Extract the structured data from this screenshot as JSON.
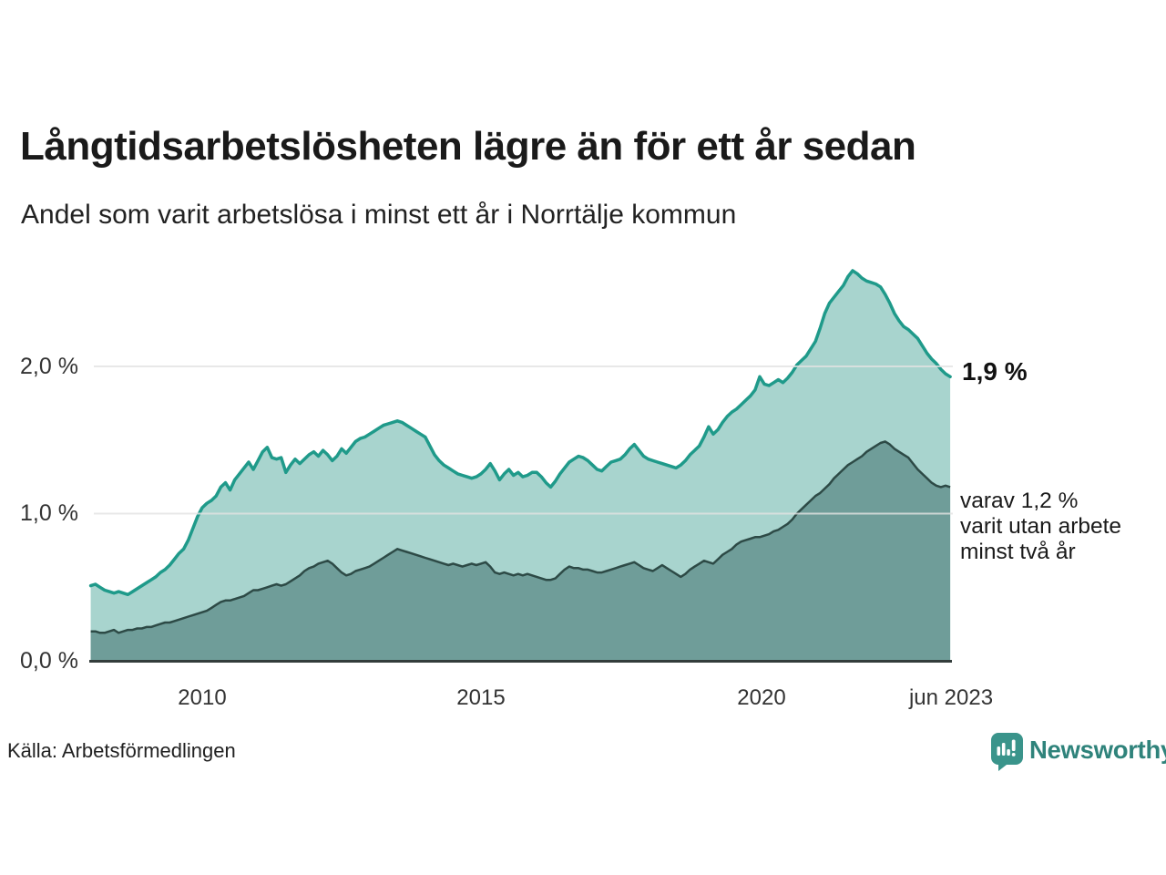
{
  "title": "Långtidsarbetslösheten lägre än för ett år sedan",
  "subtitle": "Andel som varit arbetslösa i minst ett år i Norrtälje kommun",
  "source": "Källa: Arbetsförmedlingen",
  "branding": {
    "wordmark": "Newsworthy"
  },
  "y_axis_ticks": [
    "2,0 %",
    "1,0 %",
    "0,0 %"
  ],
  "x_axis_ticks": [
    "2010",
    "2015",
    "2020",
    "jun 2023"
  ],
  "annotations": {
    "latest_total": "1,9 %",
    "two_year_lines": [
      "varav 1,2 %",
      "varit utan arbete",
      "minst två år"
    ]
  },
  "colors": {
    "line_total": "#1f9a8a",
    "fill_total": "#a8d4ce",
    "line_two_year": "#2d4a46",
    "fill_two_year": "#6f9d99",
    "grid": "#e3e3e3",
    "axis": "#333d3b",
    "brand": "#2f837b",
    "brand_icon": "#3a948b"
  },
  "chart_data": {
    "type": "area",
    "title": "Långtidsarbetslösheten lägre än för ett år sedan",
    "subtitle": "Andel som varit arbetslösa i minst ett år i Norrtälje kommun",
    "x_unit": "month",
    "x_start": "2008-01",
    "x_end": "2023-06",
    "ylim": [
      0,
      2.8
    ],
    "ytick_values_percent": [
      0.0,
      1.0,
      2.0
    ],
    "grid": "horizontal",
    "legend_position": "right-annotations",
    "series": [
      {
        "name": "Andel som varit arbetslösa i minst ett år",
        "end_label": "1,9 %",
        "end_value_percent": 1.9,
        "values": [
          0.51,
          0.52,
          0.5,
          0.48,
          0.47,
          0.46,
          0.47,
          0.46,
          0.45,
          0.47,
          0.49,
          0.51,
          0.53,
          0.55,
          0.57,
          0.6,
          0.62,
          0.65,
          0.69,
          0.73,
          0.76,
          0.82,
          0.9,
          0.98,
          1.04,
          1.07,
          1.09,
          1.12,
          1.18,
          1.21,
          1.16,
          1.23,
          1.27,
          1.31,
          1.35,
          1.3,
          1.36,
          1.42,
          1.45,
          1.38,
          1.37,
          1.38,
          1.28,
          1.33,
          1.37,
          1.34,
          1.37,
          1.4,
          1.42,
          1.39,
          1.43,
          1.4,
          1.36,
          1.39,
          1.44,
          1.41,
          1.45,
          1.49,
          1.51,
          1.52,
          1.54,
          1.56,
          1.58,
          1.6,
          1.61,
          1.62,
          1.63,
          1.62,
          1.6,
          1.58,
          1.56,
          1.54,
          1.52,
          1.46,
          1.4,
          1.36,
          1.33,
          1.31,
          1.29,
          1.27,
          1.26,
          1.25,
          1.24,
          1.25,
          1.27,
          1.3,
          1.34,
          1.29,
          1.23,
          1.27,
          1.3,
          1.26,
          1.28,
          1.25,
          1.26,
          1.28,
          1.28,
          1.25,
          1.21,
          1.18,
          1.22,
          1.27,
          1.31,
          1.35,
          1.37,
          1.39,
          1.38,
          1.36,
          1.33,
          1.3,
          1.29,
          1.32,
          1.35,
          1.36,
          1.37,
          1.4,
          1.44,
          1.47,
          1.43,
          1.39,
          1.37,
          1.36,
          1.35,
          1.34,
          1.33,
          1.32,
          1.31,
          1.33,
          1.36,
          1.4,
          1.43,
          1.46,
          1.52,
          1.59,
          1.54,
          1.57,
          1.62,
          1.66,
          1.69,
          1.71,
          1.74,
          1.77,
          1.8,
          1.84,
          1.93,
          1.88,
          1.87,
          1.89,
          1.91,
          1.89,
          1.92,
          1.96,
          2.01,
          2.04,
          2.07,
          2.12,
          2.17,
          2.26,
          2.36,
          2.43,
          2.47,
          2.51,
          2.55,
          2.61,
          2.65,
          2.63,
          2.6,
          2.58,
          2.57,
          2.56,
          2.54,
          2.49,
          2.43,
          2.36,
          2.31,
          2.27,
          2.25,
          2.22,
          2.19,
          2.14,
          2.09,
          2.05,
          2.02,
          1.98,
          1.95,
          1.93
        ]
      },
      {
        "name": "varav varit utan arbete minst två år",
        "end_label": "varav 1,2 % varit utan arbete minst två år",
        "end_value_percent": 1.2,
        "values": [
          0.2,
          0.2,
          0.19,
          0.19,
          0.2,
          0.21,
          0.19,
          0.2,
          0.21,
          0.21,
          0.22,
          0.22,
          0.23,
          0.23,
          0.24,
          0.25,
          0.26,
          0.26,
          0.27,
          0.28,
          0.29,
          0.3,
          0.31,
          0.32,
          0.33,
          0.34,
          0.36,
          0.38,
          0.4,
          0.41,
          0.41,
          0.42,
          0.43,
          0.44,
          0.46,
          0.48,
          0.48,
          0.49,
          0.5,
          0.51,
          0.52,
          0.51,
          0.52,
          0.54,
          0.56,
          0.58,
          0.61,
          0.63,
          0.64,
          0.66,
          0.67,
          0.68,
          0.66,
          0.63,
          0.6,
          0.58,
          0.59,
          0.61,
          0.62,
          0.63,
          0.64,
          0.66,
          0.68,
          0.7,
          0.72,
          0.74,
          0.76,
          0.75,
          0.74,
          0.73,
          0.72,
          0.71,
          0.7,
          0.69,
          0.68,
          0.67,
          0.66,
          0.65,
          0.66,
          0.65,
          0.64,
          0.65,
          0.66,
          0.65,
          0.66,
          0.67,
          0.64,
          0.6,
          0.59,
          0.6,
          0.59,
          0.58,
          0.59,
          0.58,
          0.59,
          0.58,
          0.57,
          0.56,
          0.55,
          0.55,
          0.56,
          0.59,
          0.62,
          0.64,
          0.63,
          0.63,
          0.62,
          0.62,
          0.61,
          0.6,
          0.6,
          0.61,
          0.62,
          0.63,
          0.64,
          0.65,
          0.66,
          0.67,
          0.65,
          0.63,
          0.62,
          0.61,
          0.63,
          0.65,
          0.63,
          0.61,
          0.59,
          0.57,
          0.59,
          0.62,
          0.64,
          0.66,
          0.68,
          0.67,
          0.66,
          0.69,
          0.72,
          0.74,
          0.76,
          0.79,
          0.81,
          0.82,
          0.83,
          0.84,
          0.84,
          0.85,
          0.86,
          0.88,
          0.89,
          0.91,
          0.93,
          0.96,
          1.0,
          1.03,
          1.06,
          1.09,
          1.12,
          1.14,
          1.17,
          1.2,
          1.24,
          1.27,
          1.3,
          1.33,
          1.35,
          1.37,
          1.39,
          1.42,
          1.44,
          1.46,
          1.48,
          1.49,
          1.47,
          1.44,
          1.42,
          1.4,
          1.38,
          1.34,
          1.3,
          1.27,
          1.24,
          1.21,
          1.19,
          1.18,
          1.19,
          1.18
        ]
      }
    ]
  }
}
